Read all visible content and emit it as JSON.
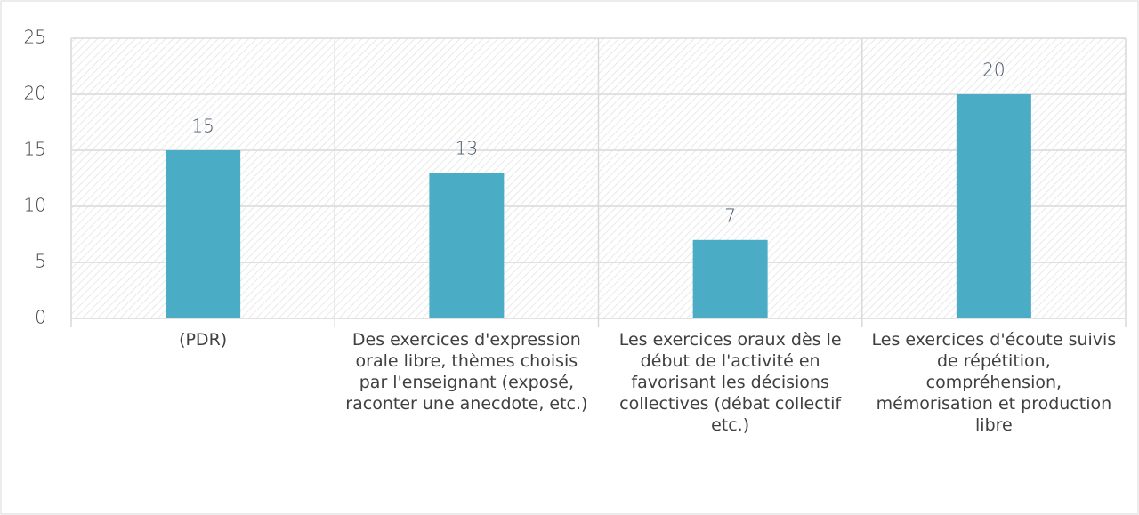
{
  "chart_data": {
    "type": "bar",
    "categories": [
      "(PDR)",
      "Des exercices d'expression orale libre, thèmes choisis par l'enseignant (exposé, raconter une anecdote, etc.)",
      "Les exercices oraux dès le début de l'activité en favorisant les décisions collectives (débat collectif etc.)",
      "Les exercices d'écoute suivis de répétition, compréhension, mémorisation et production libre"
    ],
    "values": [
      15,
      13,
      7,
      20
    ],
    "color": "#4bacc6",
    "ylim": [
      0,
      25
    ],
    "yticks": [
      0,
      5,
      10,
      15,
      20,
      25
    ],
    "grid": true
  }
}
